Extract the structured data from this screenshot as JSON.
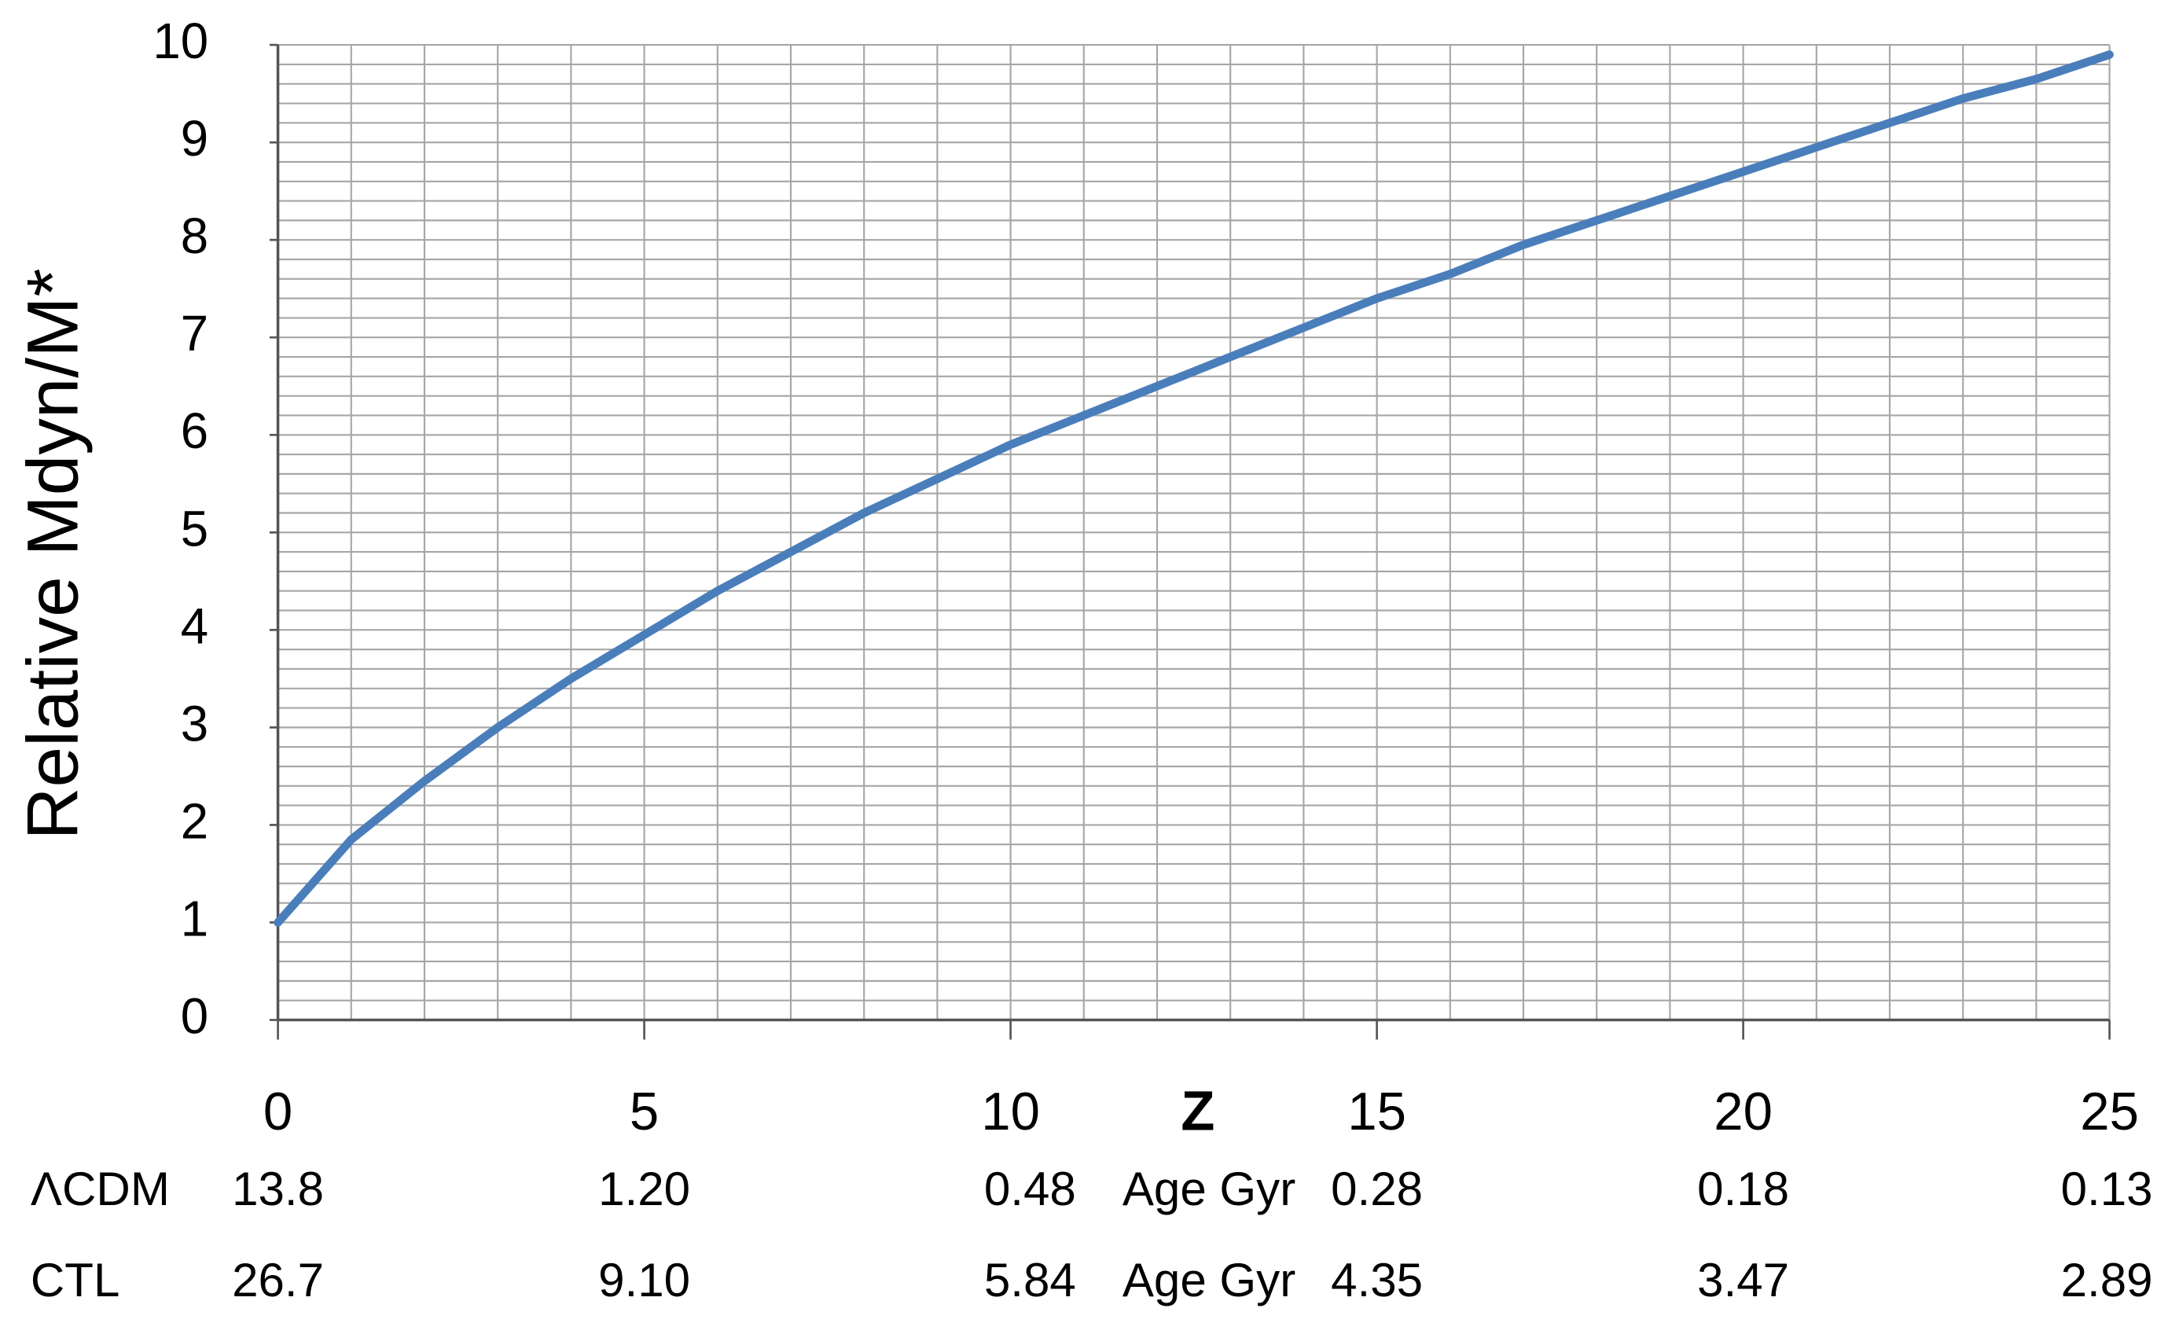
{
  "chart_data": {
    "type": "line",
    "y_label": "Relative Mdyn/M*",
    "x_label": "Z",
    "x": [
      0,
      1,
      2,
      3,
      4,
      5,
      6,
      7,
      8,
      9,
      10,
      11,
      12,
      13,
      14,
      15,
      16,
      17,
      18,
      19,
      20,
      21,
      22,
      23,
      24,
      25
    ],
    "series": [
      {
        "color": "#4a7ebb",
        "values": [
          1,
          1.85,
          2.45,
          3.0,
          3.5,
          3.95,
          4.4,
          4.8,
          5.2,
          5.55,
          5.9,
          6.2,
          6.5,
          6.8,
          7.1,
          7.4,
          7.65,
          7.95,
          8.2,
          8.45,
          8.7,
          8.95,
          9.2,
          9.45,
          9.65,
          9.9
        ]
      }
    ],
    "xlim": [
      0,
      25
    ],
    "xticks": [
      0,
      5,
      10,
      15,
      20,
      25
    ],
    "ylim": [
      0,
      10
    ],
    "yticks": [
      0,
      1,
      2,
      3,
      4,
      5,
      6,
      7,
      8,
      9,
      10
    ],
    "grid": {
      "x_step": 1,
      "y_step": 0.2
    },
    "age_table": {
      "columns_at": [
        0,
        5,
        10,
        15,
        20,
        25
      ],
      "rows": [
        {
          "name": "ΛCDM",
          "unit": "Age Gyr",
          "values": [
            "13.8",
            "1.20",
            "0.48",
            "0.28",
            "0.18",
            "0.13"
          ]
        },
        {
          "name": "CTL",
          "unit": "Age Gyr",
          "values": [
            "26.7",
            "9.10",
            "5.84",
            "4.35",
            "3.47",
            "2.89"
          ]
        }
      ]
    }
  }
}
